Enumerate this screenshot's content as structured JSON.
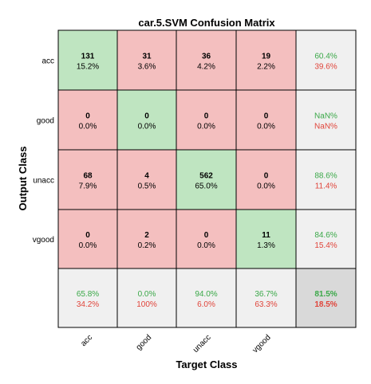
{
  "chart_data": {
    "type": "heatmap",
    "title": "car.5.SVM Confusion Matrix",
    "xlabel": "Target Class",
    "ylabel": "Output Class",
    "target_classes": [
      "acc",
      "good",
      "unacc",
      "vgood"
    ],
    "output_classes": [
      "acc",
      "good",
      "unacc",
      "vgood"
    ],
    "cells": [
      [
        {
          "count": "131",
          "pct": "15.2%"
        },
        {
          "count": "31",
          "pct": "3.6%"
        },
        {
          "count": "36",
          "pct": "4.2%"
        },
        {
          "count": "19",
          "pct": "2.2%"
        }
      ],
      [
        {
          "count": "0",
          "pct": "0.0%"
        },
        {
          "count": "0",
          "pct": "0.0%"
        },
        {
          "count": "0",
          "pct": "0.0%"
        },
        {
          "count": "0",
          "pct": "0.0%"
        }
      ],
      [
        {
          "count": "68",
          "pct": "7.9%"
        },
        {
          "count": "4",
          "pct": "0.5%"
        },
        {
          "count": "562",
          "pct": "65.0%"
        },
        {
          "count": "0",
          "pct": "0.0%"
        }
      ],
      [
        {
          "count": "0",
          "pct": "0.0%"
        },
        {
          "count": "2",
          "pct": "0.2%"
        },
        {
          "count": "0",
          "pct": "0.0%"
        },
        {
          "count": "11",
          "pct": "1.3%"
        }
      ]
    ],
    "row_summary": [
      {
        "correct": "60.4%",
        "incorrect": "39.6%"
      },
      {
        "correct": "NaN%",
        "incorrect": "NaN%"
      },
      {
        "correct": "88.6%",
        "incorrect": "11.4%"
      },
      {
        "correct": "84.6%",
        "incorrect": "15.4%"
      }
    ],
    "col_summary": [
      {
        "correct": "65.8%",
        "incorrect": "34.2%"
      },
      {
        "correct": "0.0%",
        "incorrect": "100%"
      },
      {
        "correct": "94.0%",
        "incorrect": "6.0%"
      },
      {
        "correct": "36.7%",
        "incorrect": "63.3%"
      }
    ],
    "overall": {
      "correct": "81.5%",
      "incorrect": "18.5%"
    },
    "colors": {
      "diagonal": "#bfe5c1",
      "off_diagonal": "#f4bfbf",
      "summary": "#f0f0f0",
      "overall": "#d9d9d9",
      "correct_text": "#3aa848",
      "incorrect_text": "#e0443a",
      "grid_line": "#000000"
    }
  }
}
